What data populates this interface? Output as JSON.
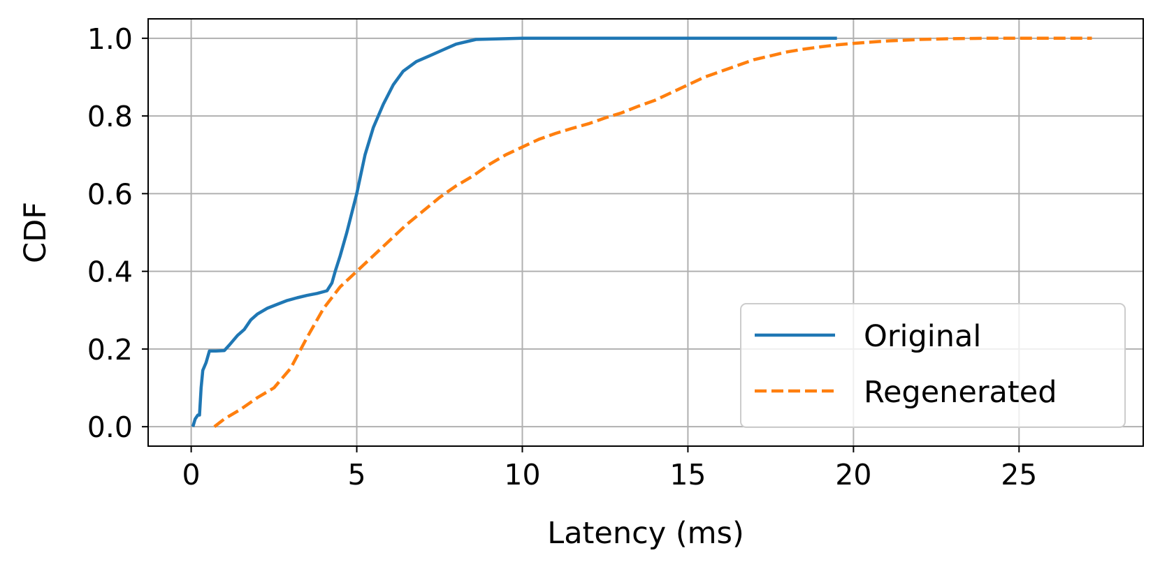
{
  "chart_data": {
    "type": "line",
    "title": "",
    "xlabel": "Latency (ms)",
    "ylabel": "CDF",
    "xlim": [
      -1.3,
      28.75
    ],
    "ylim": [
      -0.05,
      1.05
    ],
    "xticks": [
      0,
      5,
      10,
      15,
      20,
      25
    ],
    "xtick_labels": [
      "0",
      "5",
      "10",
      "15",
      "20",
      "25"
    ],
    "yticks": [
      0.0,
      0.2,
      0.4,
      0.6,
      0.8,
      1.0
    ],
    "ytick_labels": [
      "0.0",
      "0.2",
      "0.4",
      "0.6",
      "0.8",
      "1.0"
    ],
    "grid": true,
    "legend_position": "lower right",
    "series": [
      {
        "name": "Original",
        "color": "#1f77b4",
        "style": "solid",
        "x": [
          0.05,
          0.12,
          0.2,
          0.25,
          0.3,
          0.35,
          0.45,
          0.55,
          0.75,
          1.0,
          1.15,
          1.4,
          1.6,
          1.8,
          2.0,
          2.3,
          2.6,
          2.9,
          3.2,
          3.5,
          3.8,
          4.1,
          4.25,
          4.35,
          4.5,
          4.7,
          4.85,
          5.0,
          5.25,
          5.5,
          5.8,
          6.1,
          6.4,
          6.8,
          7.2,
          7.6,
          8.0,
          8.6,
          9.5,
          10.0,
          12.0,
          15.0,
          19.5
        ],
        "y": [
          0.0,
          0.02,
          0.03,
          0.03,
          0.1,
          0.145,
          0.165,
          0.195,
          0.195,
          0.196,
          0.21,
          0.235,
          0.25,
          0.275,
          0.29,
          0.305,
          0.315,
          0.325,
          0.332,
          0.338,
          0.343,
          0.35,
          0.37,
          0.4,
          0.44,
          0.5,
          0.55,
          0.6,
          0.7,
          0.77,
          0.83,
          0.88,
          0.915,
          0.94,
          0.955,
          0.97,
          0.985,
          0.997,
          0.999,
          1.0,
          1.0,
          1.0,
          1.0
        ]
      },
      {
        "name": "Regenerated",
        "color": "#ff7f0e",
        "style": "dashed",
        "x": [
          0.7,
          1.0,
          1.5,
          2.0,
          2.5,
          3.0,
          3.5,
          4.0,
          4.5,
          5.0,
          5.5,
          6.0,
          6.5,
          7.0,
          7.5,
          8.0,
          8.5,
          9.0,
          9.5,
          10.0,
          10.5,
          11.0,
          11.5,
          12.0,
          12.5,
          13.0,
          13.5,
          14.0,
          14.5,
          15.0,
          15.5,
          16.0,
          16.5,
          17.0,
          17.5,
          18.0,
          18.5,
          19.0,
          19.5,
          20.0,
          20.5,
          21.0,
          21.5,
          22.0,
          23.0,
          24.0,
          25.0,
          27.2
        ],
        "y": [
          0.0,
          0.02,
          0.045,
          0.075,
          0.1,
          0.15,
          0.23,
          0.305,
          0.36,
          0.4,
          0.44,
          0.48,
          0.52,
          0.555,
          0.59,
          0.62,
          0.645,
          0.675,
          0.7,
          0.72,
          0.74,
          0.755,
          0.768,
          0.78,
          0.795,
          0.808,
          0.825,
          0.84,
          0.86,
          0.88,
          0.9,
          0.915,
          0.93,
          0.945,
          0.955,
          0.965,
          0.972,
          0.978,
          0.983,
          0.987,
          0.99,
          0.993,
          0.995,
          0.997,
          0.999,
          1.0,
          1.0,
          1.0
        ]
      }
    ]
  }
}
